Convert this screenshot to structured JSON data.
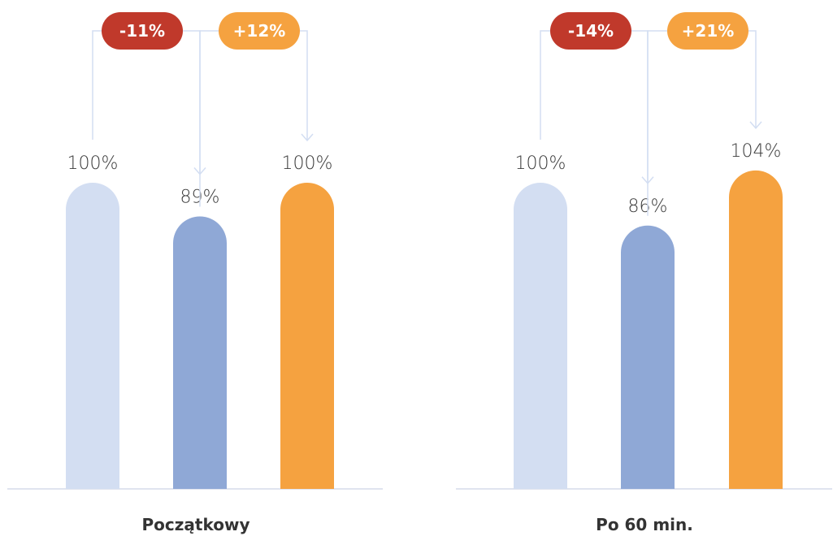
{
  "chart_data": {
    "type": "bar",
    "groups": [
      {
        "label": "Początkowy",
        "values": [
          100,
          89,
          100
        ],
        "value_labels": [
          "100%",
          "89%",
          "100%"
        ],
        "changes": [
          {
            "from": 0,
            "to": 1,
            "label": "-11%",
            "color": "#c0392b"
          },
          {
            "from": 1,
            "to": 2,
            "label": "+12%",
            "color": "#f5a240"
          }
        ]
      },
      {
        "label": "Po 60 min.",
        "values": [
          100,
          86,
          104
        ],
        "value_labels": [
          "100%",
          "86%",
          "104%"
        ],
        "changes": [
          {
            "from": 0,
            "to": 1,
            "label": "-14%",
            "color": "#c0392b"
          },
          {
            "from": 1,
            "to": 2,
            "label": "+21%",
            "color": "#f5a240"
          }
        ]
      }
    ],
    "bar_colors": [
      "#d3def2",
      "#8fa8d6",
      "#f5a240"
    ],
    "connector_color": "#d3def2",
    "baseline_color": "#d6dcea",
    "ylim": [
      0,
      104
    ]
  }
}
